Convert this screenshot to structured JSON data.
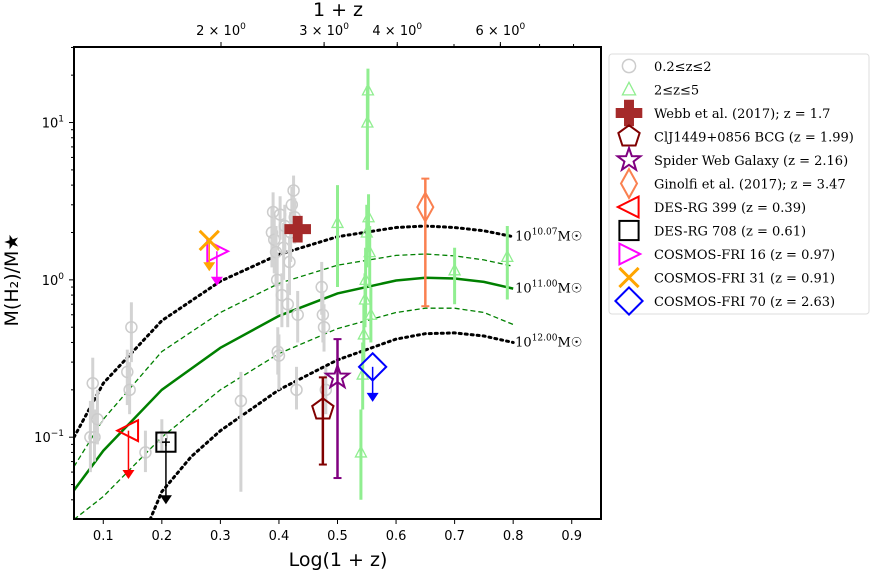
{
  "chart_data": {
    "type": "scatter",
    "xlabel": "Log(1 + z)",
    "ylabel": "M(H₂)/M★",
    "top_xlabel": "1 + z",
    "xlim": [
      0.05,
      0.95
    ],
    "ylim_log": [
      -1.52,
      1.48
    ],
    "x_ticks": [
      {
        "value": 0.1,
        "label": "0.1"
      },
      {
        "value": 0.2,
        "label": "0.2"
      },
      {
        "value": 0.3,
        "label": "0.3"
      },
      {
        "value": 0.4,
        "label": "0.4"
      },
      {
        "value": 0.5,
        "label": "0.5"
      },
      {
        "value": 0.6,
        "label": "0.6"
      },
      {
        "value": 0.7,
        "label": "0.7"
      },
      {
        "value": 0.8,
        "label": "0.8"
      },
      {
        "value": 0.9,
        "label": "0.9"
      }
    ],
    "y_ticks": [
      {
        "exp": -1,
        "label": "10",
        "sup": "−1"
      },
      {
        "exp": 0,
        "label": "10",
        "sup": "0"
      },
      {
        "exp": 1,
        "label": "10",
        "sup": "1"
      }
    ],
    "top_ticks": [
      {
        "z1": 2,
        "label": "2 × 10",
        "sup": "0"
      },
      {
        "z1": 3,
        "label": "3 × 10",
        "sup": "0"
      },
      {
        "z1": 4,
        "label": "4 × 10",
        "sup": "0"
      },
      {
        "z1": 6,
        "label": "6 × 10",
        "sup": "0"
      }
    ],
    "model_curves": [
      {
        "name": "10^10.07 M☉",
        "label_base": "10",
        "label_sup": "10.07",
        "label_unit": "M☉",
        "style": "dotted",
        "color": "#000000",
        "x": [
          0.05,
          0.1,
          0.2,
          0.3,
          0.4,
          0.5,
          0.6,
          0.65,
          0.7,
          0.75,
          0.8
        ],
        "y": [
          0.1,
          0.22,
          0.55,
          0.98,
          1.45,
          1.88,
          2.15,
          2.2,
          2.15,
          2.05,
          1.88
        ]
      },
      {
        "name": "upper-dashed",
        "style": "dashed",
        "color": "#008000",
        "x": [
          0.05,
          0.1,
          0.2,
          0.3,
          0.4,
          0.5,
          0.6,
          0.65,
          0.7,
          0.75,
          0.8
        ],
        "y": [
          0.065,
          0.13,
          0.35,
          0.62,
          0.95,
          1.24,
          1.43,
          1.46,
          1.42,
          1.34,
          1.22
        ]
      },
      {
        "name": "10^11.00 M☉",
        "label_base": "10",
        "label_sup": "11.00",
        "label_unit": "M☉",
        "style": "solid",
        "color": "#008000",
        "x": [
          0.05,
          0.1,
          0.2,
          0.3,
          0.4,
          0.5,
          0.6,
          0.65,
          0.7,
          0.75,
          0.8
        ],
        "y": [
          0.046,
          0.082,
          0.2,
          0.37,
          0.59,
          0.82,
          0.99,
          1.03,
          1.02,
          0.97,
          0.88
        ]
      },
      {
        "name": "lower-dashed",
        "style": "dashed",
        "color": "#008000",
        "x": [
          0.05,
          0.1,
          0.2,
          0.3,
          0.4,
          0.5,
          0.6,
          0.65,
          0.7,
          0.75,
          0.8
        ],
        "y": [
          0.03,
          0.042,
          0.1,
          0.2,
          0.34,
          0.49,
          0.62,
          0.66,
          0.66,
          0.62,
          0.52
        ]
      },
      {
        "name": "10^12.00 M☉",
        "label_base": "10",
        "label_sup": "12.00",
        "label_unit": "M☉",
        "style": "dotted",
        "color": "#000000",
        "x": [
          0.18,
          0.2,
          0.25,
          0.3,
          0.4,
          0.5,
          0.6,
          0.65,
          0.7,
          0.75,
          0.8
        ],
        "y": [
          0.03,
          0.045,
          0.075,
          0.11,
          0.2,
          0.31,
          0.42,
          0.455,
          0.46,
          0.44,
          0.4
        ]
      }
    ],
    "series": [
      {
        "name": "0.2≤z≤2",
        "marker": "circle",
        "color": "#cccccc",
        "points": [
          {
            "x": 0.078,
            "y": 0.1,
            "lo": 0.06,
            "hi": 0.17
          },
          {
            "x": 0.082,
            "y": 0.22,
            "lo": 0.13,
            "hi": 0.32
          },
          {
            "x": 0.085,
            "y": 0.1,
            "lo": 0.07,
            "hi": 0.15
          },
          {
            "x": 0.09,
            "y": 0.13,
            "lo": 0.09,
            "hi": 0.2
          },
          {
            "x": 0.141,
            "y": 0.26,
            "lo": 0.16,
            "hi": 0.36
          },
          {
            "x": 0.145,
            "y": 0.2,
            "lo": 0.14,
            "hi": 0.3
          },
          {
            "x": 0.148,
            "y": 0.5,
            "lo": 0.3,
            "hi": 0.72
          },
          {
            "x": 0.172,
            "y": 0.08,
            "lo": 0.06,
            "hi": 0.11
          },
          {
            "x": 0.2,
            "y": 0.1,
            "lo": 0.08,
            "hi": 0.13
          },
          {
            "x": 0.335,
            "y": 0.17,
            "lo": 0.045,
            "hi": 0.26
          },
          {
            "x": 0.388,
            "y": 2.0,
            "lo": 1.2,
            "hi": 2.9
          },
          {
            "x": 0.39,
            "y": 2.7,
            "lo": 1.8,
            "hi": 3.6
          },
          {
            "x": 0.392,
            "y": 1.8,
            "lo": 1.1,
            "hi": 2.6
          },
          {
            "x": 0.395,
            "y": 1.5,
            "lo": 0.9,
            "hi": 2.2
          },
          {
            "x": 0.397,
            "y": 1.0,
            "lo": 0.6,
            "hi": 1.5
          },
          {
            "x": 0.398,
            "y": 0.35,
            "lo": 0.25,
            "hi": 0.5
          },
          {
            "x": 0.4,
            "y": 0.33,
            "lo": 0.2,
            "hi": 0.45
          },
          {
            "x": 0.402,
            "y": 2.6,
            "lo": 1.8,
            "hi": 3.4
          },
          {
            "x": 0.405,
            "y": 0.8,
            "lo": 0.5,
            "hi": 1.1
          },
          {
            "x": 0.408,
            "y": 1.6,
            "lo": 1.0,
            "hi": 2.3
          },
          {
            "x": 0.41,
            "y": 2.2,
            "lo": 1.5,
            "hi": 3.0
          },
          {
            "x": 0.415,
            "y": 0.7,
            "lo": 0.5,
            "hi": 0.95
          },
          {
            "x": 0.418,
            "y": 1.3,
            "lo": 0.8,
            "hi": 1.9
          },
          {
            "x": 0.42,
            "y": 2.0,
            "lo": 1.3,
            "hi": 2.7
          },
          {
            "x": 0.422,
            "y": 3.0,
            "lo": 2.0,
            "hi": 3.9
          },
          {
            "x": 0.425,
            "y": 3.7,
            "lo": 2.6,
            "hi": 4.6
          },
          {
            "x": 0.427,
            "y": 2.5,
            "lo": 1.7,
            "hi": 3.3
          },
          {
            "x": 0.43,
            "y": 0.2,
            "lo": 0.15,
            "hi": 0.28
          },
          {
            "x": 0.432,
            "y": 0.6,
            "lo": 0.4,
            "hi": 0.85
          },
          {
            "x": 0.473,
            "y": 0.9,
            "lo": 0.6,
            "hi": 1.3
          },
          {
            "x": 0.475,
            "y": 0.6,
            "lo": 0.4,
            "hi": 0.85
          },
          {
            "x": 0.477,
            "y": 0.5,
            "lo": 0.35,
            "hi": 0.7
          },
          {
            "x": 0.48,
            "y": 0.2,
            "lo": 0.14,
            "hi": 0.28
          }
        ]
      },
      {
        "name": "2≤z≤5",
        "marker": "triangle",
        "color": "#90ee90",
        "points": [
          {
            "x": 0.5,
            "y": 2.3,
            "lo": 0.9,
            "hi": 4.0
          },
          {
            "x": 0.54,
            "y": 0.08,
            "lo": 0.04,
            "hi": 0.15
          },
          {
            "x": 0.543,
            "y": 0.25,
            "lo": 0.15,
            "hi": 0.4
          },
          {
            "x": 0.545,
            "y": 0.45,
            "lo": 0.3,
            "hi": 0.7
          },
          {
            "x": 0.547,
            "y": 0.75,
            "lo": 0.5,
            "hi": 1.1
          },
          {
            "x": 0.548,
            "y": 1.0,
            "lo": 0.6,
            "hi": 1.6
          },
          {
            "x": 0.55,
            "y": 2.0,
            "lo": 1.2,
            "hi": 3.0
          },
          {
            "x": 0.551,
            "y": 10.0,
            "lo": 5.0,
            "hi": 17.0
          },
          {
            "x": 0.552,
            "y": 16.0,
            "lo": 10.0,
            "hi": 22.0
          },
          {
            "x": 0.553,
            "y": 2.5,
            "lo": 1.5,
            "hi": 3.5
          },
          {
            "x": 0.555,
            "y": 1.5,
            "lo": 0.9,
            "hi": 2.2
          },
          {
            "x": 0.557,
            "y": 0.6,
            "lo": 0.4,
            "hi": 0.9
          },
          {
            "x": 0.7,
            "y": 1.15,
            "lo": 0.7,
            "hi": 1.6
          },
          {
            "x": 0.79,
            "y": 1.4,
            "lo": 0.75,
            "hi": 2.2
          }
        ]
      },
      {
        "name": "Webb et al. (2017); z = 1.7",
        "marker": "plus",
        "color": "#a52a2a",
        "points": [
          {
            "x": 0.432,
            "y": 2.1,
            "lo": 1.9,
            "hi": 2.35
          }
        ]
      },
      {
        "name": "ClJ1449+0856 BCG (z = 1.99)",
        "marker": "pentagon",
        "color": "#800000",
        "points": [
          {
            "x": 0.475,
            "y": 0.15,
            "lo": 0.067,
            "hi": 0.24
          }
        ]
      },
      {
        "name": "Spider Web Galaxy (z = 2.16)",
        "marker": "star",
        "color": "#800080",
        "points": [
          {
            "x": 0.5,
            "y": 0.24,
            "lo": 0.055,
            "hi": 0.42
          }
        ]
      },
      {
        "name": "Ginolfi et al. (2017); z = 3.47",
        "marker": "thin-diamond",
        "color": "#fa8050",
        "points": [
          {
            "x": 0.65,
            "y": 2.9,
            "lo": 0.68,
            "hi": 4.4
          }
        ]
      },
      {
        "name": "DES-RG 399 (z = 0.39)",
        "marker": "triangle-left",
        "color": "#ff0000",
        "points": [
          {
            "x": 0.143,
            "y": 0.11,
            "upper_limit_to": 0.055
          }
        ]
      },
      {
        "name": "DES-RG 708 (z = 0.61)",
        "marker": "square",
        "color": "#000000",
        "points": [
          {
            "x": 0.207,
            "y": 0.093,
            "upper_limit_to": 0.038
          }
        ]
      },
      {
        "name": "COSMOS-FRI 16 (z = 0.97)",
        "marker": "triangle-right",
        "color": "#ff00ff",
        "points": [
          {
            "x": 0.294,
            "y": 1.52,
            "upper_limit_to": 0.93
          }
        ]
      },
      {
        "name": "COSMOS-FRI 31 (z = 0.91)",
        "marker": "x",
        "color": "#ffa500",
        "points": [
          {
            "x": 0.281,
            "y": 1.78,
            "upper_limit_to": 1.15
          }
        ]
      },
      {
        "name": "COSMOS-FRI 70 (z = 2.63)",
        "marker": "diamond",
        "color": "#0000ff",
        "points": [
          {
            "x": 0.56,
            "y": 0.28,
            "upper_limit_to": 0.17
          }
        ]
      }
    ]
  },
  "legend": {
    "items": [
      {
        "text": "0.2≤z≤2"
      },
      {
        "text": "2≤z≤5"
      },
      {
        "text": "Webb et al. (2017); z = 1.7"
      },
      {
        "text": "ClJ1449+0856 BCG (z = 1.99)"
      },
      {
        "text": "Spider Web Galaxy (z = 2.16)"
      },
      {
        "text": "Ginolfi et al. (2017); z = 3.47"
      },
      {
        "text": "DES-RG 399 (z = 0.39)"
      },
      {
        "text": "DES-RG 708 (z = 0.61)"
      },
      {
        "text": "COSMOS-FRI 16 (z = 0.97)"
      },
      {
        "text": "COSMOS-FRI 31 (z = 0.91)"
      },
      {
        "text": "COSMOS-FRI 70 (z = 2.63)"
      }
    ]
  }
}
